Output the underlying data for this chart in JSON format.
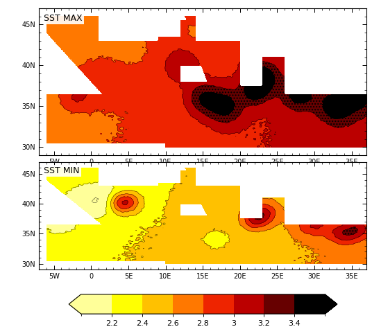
{
  "title_top": "SST MAX",
  "title_bot": "SST MIN",
  "lon_min": -7,
  "lon_max": 37,
  "lat_min": 29,
  "lat_max": 47,
  "lon_ticks": [
    -5,
    0,
    5,
    10,
    15,
    20,
    25,
    30,
    35
  ],
  "lon_labels": [
    "5W",
    "0",
    "5E",
    "10E",
    "15E",
    "20E",
    "25E",
    "30E",
    "35E"
  ],
  "lat_ticks": [
    30,
    35,
    40,
    45
  ],
  "lat_labels": [
    "30N",
    "35N",
    "40N",
    "45N"
  ],
  "cbar_levels": [
    2.0,
    2.2,
    2.4,
    2.6,
    2.8,
    3.0,
    3.2,
    3.4,
    3.6
  ],
  "cbar_ticks": [
    2.2,
    2.4,
    2.6,
    2.8,
    3.0,
    3.2,
    3.4
  ],
  "cbar_tick_labels": [
    "2.2",
    "2.4",
    "2.6",
    "2.8",
    "3",
    "3.2",
    "3.4"
  ],
  "colors": [
    "#FFFF99",
    "#FFFF00",
    "#FFC000",
    "#FF7700",
    "#EE2200",
    "#BB0000",
    "#660000",
    "#000000"
  ],
  "font_size_title": 9,
  "font_size_tick": 7,
  "font_size_cbar": 8
}
